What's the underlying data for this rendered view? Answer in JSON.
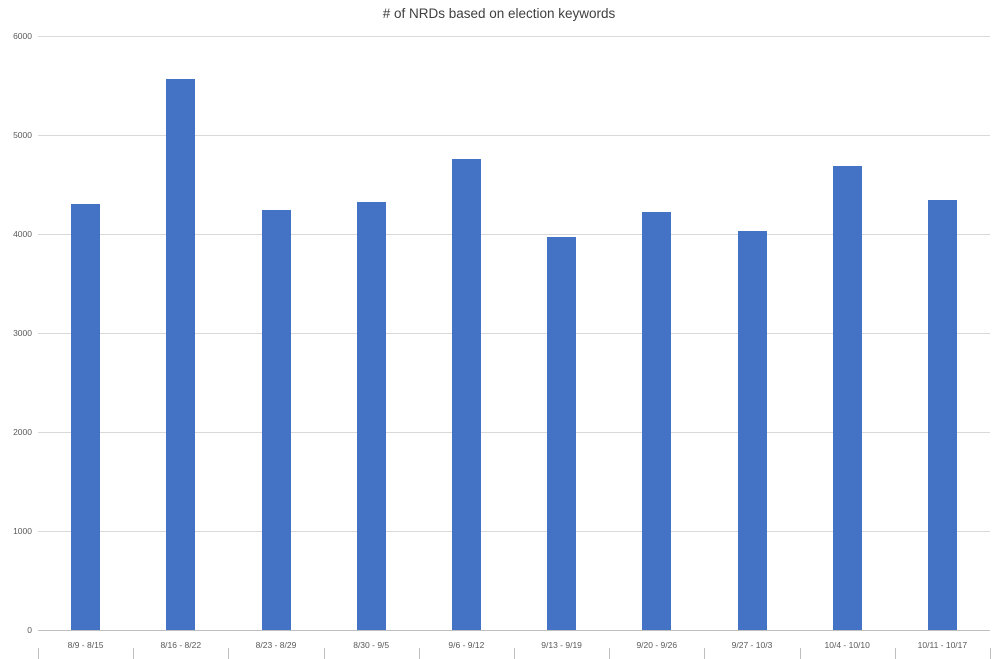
{
  "chart_data": {
    "type": "bar",
    "title": "# of NRDs based on election keywords",
    "categories": [
      "8/9 - 8/15",
      "8/16 - 8/22",
      "8/23 - 8/29",
      "8/30 - 9/5",
      "9/6 - 9/12",
      "9/13 - 9/19",
      "9/20 - 9/26",
      "9/27 - 10/3",
      "10/4 - 10/10",
      "10/11 - 10/17"
    ],
    "values": [
      4300,
      5570,
      4240,
      4320,
      4760,
      3970,
      4220,
      4030,
      4690,
      4340
    ],
    "xlabel": "",
    "ylabel": "",
    "ylim": [
      0,
      6000
    ],
    "yticks": [
      0,
      1000,
      2000,
      3000,
      4000,
      5000,
      6000
    ],
    "grid": "horizontal",
    "legend_position": "none",
    "bar_color": "#4472C4",
    "gridline_color": "#D9D9D9",
    "axis_color": "#BFBFBF",
    "tick_label_color": "#595959",
    "title_color": "#3f3f3f"
  }
}
